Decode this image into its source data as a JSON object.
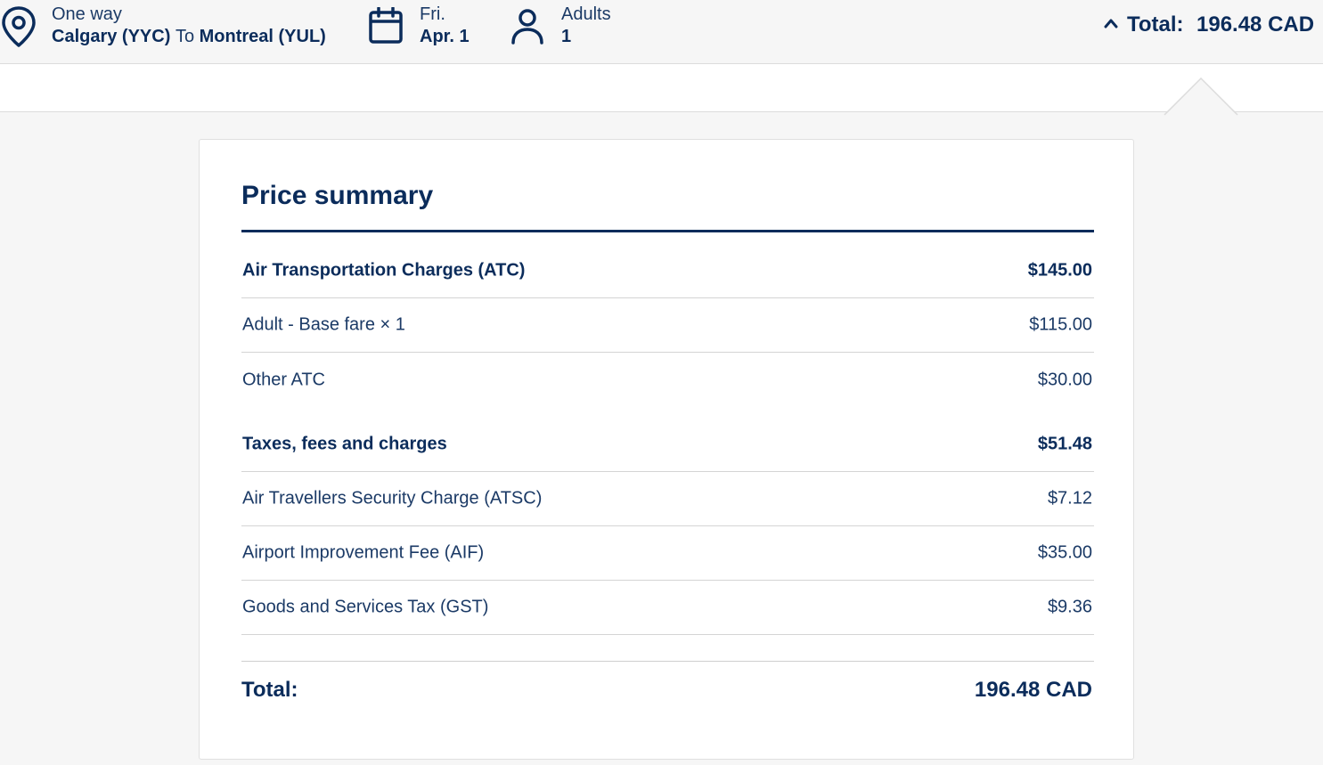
{
  "header": {
    "trip": {
      "type_label": "One way",
      "origin": "Calgary (YYC)",
      "connector": "To",
      "destination": "Montreal (YUL)",
      "icon": "location-pin-icon"
    },
    "date": {
      "day_label": "Fri.",
      "date_value": "Apr. 1",
      "icon": "calendar-icon"
    },
    "passengers": {
      "type_label": "Adults",
      "count": "1",
      "icon": "person-icon"
    },
    "total": {
      "label": "Total:",
      "value": "196.48 CAD",
      "icon": "chevron-up-icon"
    }
  },
  "colors": {
    "navy": "#0b2c5b",
    "text": "#1b3a66",
    "background": "#f6f6f6",
    "card": "#ffffff",
    "divider": "#d4d4d4"
  },
  "summary": {
    "title": "Price summary",
    "sections": [
      {
        "label": "Air Transportation Charges (ATC)",
        "amount": "$145.00",
        "items": [
          {
            "label": "Adult - Base fare × 1",
            "amount": "$115.00"
          },
          {
            "label": "Other ATC",
            "amount": "$30.00"
          }
        ]
      },
      {
        "label": "Taxes, fees and charges",
        "amount": "$51.48",
        "items": [
          {
            "label": "Air Travellers Security Charge (ATSC)",
            "amount": "$7.12"
          },
          {
            "label": "Airport Improvement Fee (AIF)",
            "amount": "$35.00"
          },
          {
            "label": "Goods and Services Tax (GST)",
            "amount": "$9.36"
          }
        ]
      }
    ],
    "total_label": "Total:",
    "total_value": "196.48 CAD"
  }
}
